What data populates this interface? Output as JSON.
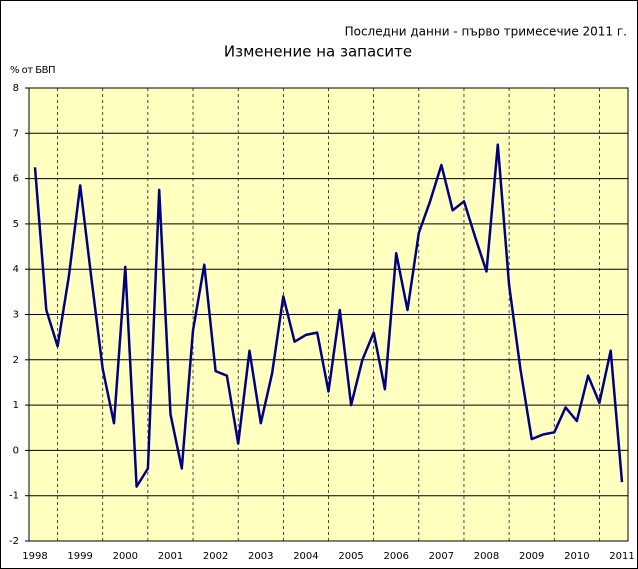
{
  "chart_data": {
    "type": "line",
    "title": "Изменение на запасите",
    "subtitle": "Последни данни - първо тримесечие 2011  г.",
    "y_label": "% от БВП",
    "categories": [
      "1998",
      null,
      null,
      null,
      "1999",
      null,
      null,
      null,
      "2000",
      null,
      null,
      null,
      "2001",
      null,
      null,
      null,
      "2002",
      null,
      null,
      null,
      "2003",
      null,
      null,
      null,
      "2004",
      null,
      null,
      null,
      "2005",
      null,
      null,
      null,
      "2006",
      null,
      null,
      null,
      "2007",
      null,
      null,
      null,
      "2008",
      null,
      null,
      null,
      "2009",
      null,
      null,
      null,
      "2010",
      null,
      null,
      null,
      "2011"
    ],
    "series": [
      {
        "name": "Изменение на запасите",
        "color": "#000080",
        "values": [
          6.25,
          3.1,
          2.3,
          3.85,
          5.85,
          3.8,
          1.8,
          0.6,
          4.05,
          -0.8,
          -0.4,
          5.75,
          0.8,
          -0.4,
          2.65,
          4.1,
          1.75,
          1.65,
          0.15,
          2.2,
          0.6,
          1.7,
          3.4,
          2.4,
          2.55,
          2.6,
          1.3,
          3.1,
          1.0,
          2.0,
          2.6,
          1.35,
          4.35,
          3.1,
          4.8,
          5.5,
          6.3,
          5.3,
          5.5,
          4.7,
          3.95,
          6.75,
          3.65,
          1.8,
          0.25,
          0.35,
          0.4,
          0.95,
          0.65,
          1.65,
          1.05,
          2.2,
          -0.7
        ]
      }
    ],
    "ylim": [
      -2,
      8
    ],
    "yticks": [
      -2,
      -1,
      0,
      1,
      2,
      3,
      4,
      5,
      6,
      7,
      8
    ],
    "grid": true
  }
}
